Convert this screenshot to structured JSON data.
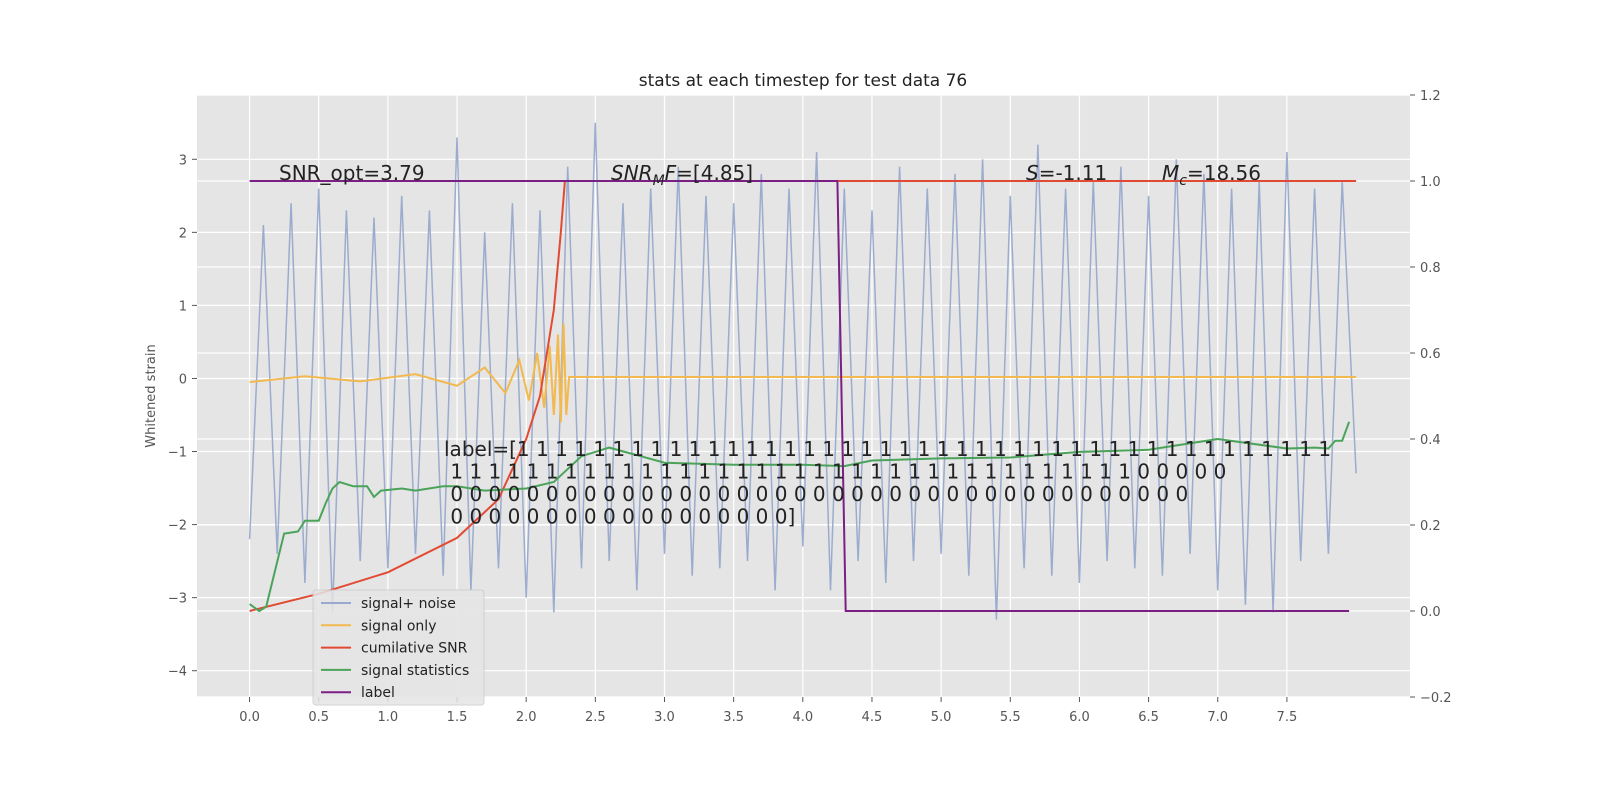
{
  "chart_data": {
    "type": "line",
    "title": "stats at each timestep for test data 76",
    "ylabel": "Whitened strain",
    "xlim": [
      -0.38,
      8.39
    ],
    "ylim": [
      -4.36,
      3.88
    ],
    "y2lim": [
      -0.2,
      1.2
    ],
    "xticks": [
      {
        "value": 0,
        "label": "0.0"
      },
      0.5,
      {
        "value": 1,
        "label": "1.0"
      },
      1.5,
      {
        "value": 2,
        "label": "2.0"
      },
      2.5,
      {
        "value": 3,
        "label": "3.0"
      },
      3.5,
      {
        "value": 4,
        "label": "4.0"
      },
      4.5,
      {
        "value": 5,
        "label": "5.0"
      },
      5.5,
      {
        "value": 6,
        "label": "6.0"
      },
      6.5,
      {
        "value": 7,
        "label": "7.0"
      },
      7.5
    ],
    "yticks": [
      {
        "value": -4,
        "label": "−4"
      },
      {
        "value": -3,
        "label": "−3"
      },
      {
        "value": -2,
        "label": "−2"
      },
      {
        "value": -1,
        "label": "−1"
      },
      0,
      1,
      2,
      3
    ],
    "y2ticks": [
      {
        "value": -0.2,
        "label": "−0.2"
      },
      {
        "value": 0,
        "label": "0.0"
      },
      0.2,
      0.4,
      0.6,
      0.8,
      {
        "value": 1,
        "label": "1.0"
      },
      1.2
    ],
    "grid": true,
    "legend": "lower left",
    "series": [
      {
        "name": "signal+ noise",
        "color": "#97a9cc",
        "x": [
          0,
          0.1,
          0.2,
          0.3,
          0.4,
          0.5,
          0.6,
          0.7,
          0.8,
          0.9,
          1,
          1.1,
          1.2,
          1.3,
          1.4,
          1.5,
          1.6,
          1.7,
          1.8,
          1.9,
          2,
          2.1,
          2.2,
          2.3,
          2.4,
          2.5,
          2.6,
          2.7,
          2.8,
          2.9,
          3,
          3.1,
          3.2,
          3.3,
          3.4,
          3.5,
          3.6,
          3.7,
          3.8,
          3.9,
          4,
          4.1,
          4.2,
          4.3,
          4.4,
          4.5,
          4.6,
          4.7,
          4.8,
          4.9,
          5,
          5.1,
          5.2,
          5.3,
          5.4,
          5.5,
          5.6,
          5.7,
          5.8,
          5.9,
          6,
          6.1,
          6.2,
          6.3,
          6.4,
          6.5,
          6.6,
          6.7,
          6.8,
          6.9,
          7,
          7.1,
          7.2,
          7.3,
          7.4,
          7.5,
          7.6,
          7.7,
          7.8,
          7.9,
          8
        ],
        "values": [
          -2.2,
          2.1,
          -2.4,
          2.4,
          -2.8,
          2.6,
          -3.2,
          2.3,
          -2.5,
          2.2,
          -2.6,
          2.5,
          -2.4,
          2.3,
          -2.7,
          3.3,
          -2.9,
          2.0,
          -2.6,
          2.4,
          -3.0,
          2.3,
          -3.2,
          2.9,
          -2.6,
          3.5,
          -2.5,
          2.4,
          -2.9,
          2.6,
          -2.4,
          2.9,
          -2.7,
          2.5,
          -2.6,
          2.4,
          -2.5,
          2.8,
          -2.9,
          2.6,
          -2.3,
          3.1,
          -2.9,
          2.6,
          -2.5,
          2.3,
          -2.8,
          2.9,
          -2.5,
          2.6,
          -2.4,
          2.8,
          -2.7,
          3.0,
          -3.3,
          2.5,
          -2.6,
          3.2,
          -2.7,
          2.6,
          -2.8,
          2.7,
          -2.5,
          2.9,
          -2.6,
          2.5,
          -2.7,
          3.0,
          -2.4,
          2.8,
          -2.9,
          2.6,
          -3.1,
          2.7,
          -3.2,
          3.1,
          -2.5,
          2.6,
          -2.4,
          2.7,
          -1.3
        ]
      },
      {
        "name": "signal only",
        "color": "#f1b94f",
        "x": [
          0,
          0.4,
          0.8,
          1.2,
          1.5,
          1.7,
          1.85,
          1.95,
          2.02,
          2.08,
          2.13,
          2.17,
          2.2,
          2.23,
          2.25,
          2.27,
          2.29,
          2.31,
          8
        ],
        "values": [
          -0.05,
          0.03,
          -0.04,
          0.06,
          -0.1,
          0.15,
          -0.2,
          0.25,
          -0.3,
          0.35,
          -0.4,
          0.45,
          -0.5,
          0.6,
          -0.6,
          0.75,
          -0.5,
          0.02,
          0.02
        ]
      },
      {
        "name": "cumilative SNR",
        "color": "#e24a33",
        "axis": "y2",
        "x": [
          0,
          0.5,
          1,
          1.5,
          1.8,
          2,
          2.1,
          2.2,
          2.25,
          2.28,
          8
        ],
        "values": [
          0,
          0.04,
          0.09,
          0.17,
          0.26,
          0.4,
          0.5,
          0.7,
          0.88,
          1,
          1
        ]
      },
      {
        "name": "signal statistics",
        "color": "#4ba35a",
        "axis": "y2",
        "x": [
          0,
          0.07,
          0.12,
          0.25,
          0.35,
          0.4,
          0.5,
          0.55,
          0.6,
          0.65,
          0.75,
          0.85,
          0.9,
          0.95,
          1.1,
          1.2,
          1.4,
          1.5,
          1.7,
          2,
          2.2,
          2.4,
          2.6,
          3,
          3.5,
          4,
          4.3,
          4.5,
          5,
          5.5,
          6,
          6.5,
          7,
          7.5,
          7.7,
          7.8,
          7.85,
          7.9,
          7.95
        ],
        "values": [
          0.016,
          0,
          0.01,
          0.18,
          0.185,
          0.21,
          0.21,
          0.25,
          0.285,
          0.3,
          0.29,
          0.29,
          0.265,
          0.28,
          0.285,
          0.28,
          0.29,
          0.29,
          0.28,
          0.285,
          0.3,
          0.36,
          0.38,
          0.345,
          0.34,
          0.34,
          0.337,
          0.35,
          0.355,
          0.357,
          0.37,
          0.375,
          0.4,
          0.378,
          0.38,
          0.378,
          0.396,
          0.396,
          0.44
        ]
      },
      {
        "name": "label",
        "color": "#7b1f85",
        "axis": "y2",
        "x": [
          0,
          4.25,
          4.31,
          7.95
        ],
        "values": [
          1,
          1,
          0,
          0
        ]
      }
    ],
    "annotations": [
      [
        [
          "SNR_opt=3.79",
          "normal"
        ]
      ],
      [
        [
          "SNR",
          "italic"
        ],
        [
          "M",
          "sub"
        ],
        [
          "F",
          "italic"
        ],
        [
          "=[4.85]",
          "normal"
        ]
      ],
      [
        [
          "S",
          "italic"
        ],
        [
          "=-1.11",
          "normal"
        ]
      ],
      [
        [
          "M",
          "italic"
        ],
        [
          "c",
          "sub"
        ],
        [
          "=18.56",
          "normal"
        ]
      ]
    ],
    "label_text": [
      "label=[1 1 1 1 1 1 1 1 1 1 1 1 1 1 1 1 1 1 1 1 1 1 1 1 1 1 1 1 1 1 1 1 1 1 1 1 1 1 1 1 1 1 1",
      " 1 1 1 1 1 1 1 1 1 1 1 1 1 1 1 1 1 1 1 1 1 1 1 1 1 1 1 1 1 1 1 1 1 1 1 1 0 0 0 0 0",
      " 0 0 0 0 0 0 0 0 0 0 0 0 0 0 0 0 0 0 0 0 0 0 0 0 0 0 0 0 0 0 0 0 0 0 0 0 0 0 0",
      " 0 0 0 0 0 0 0 0 0 0 0 0 0 0 0 0 0 0]"
    ]
  }
}
